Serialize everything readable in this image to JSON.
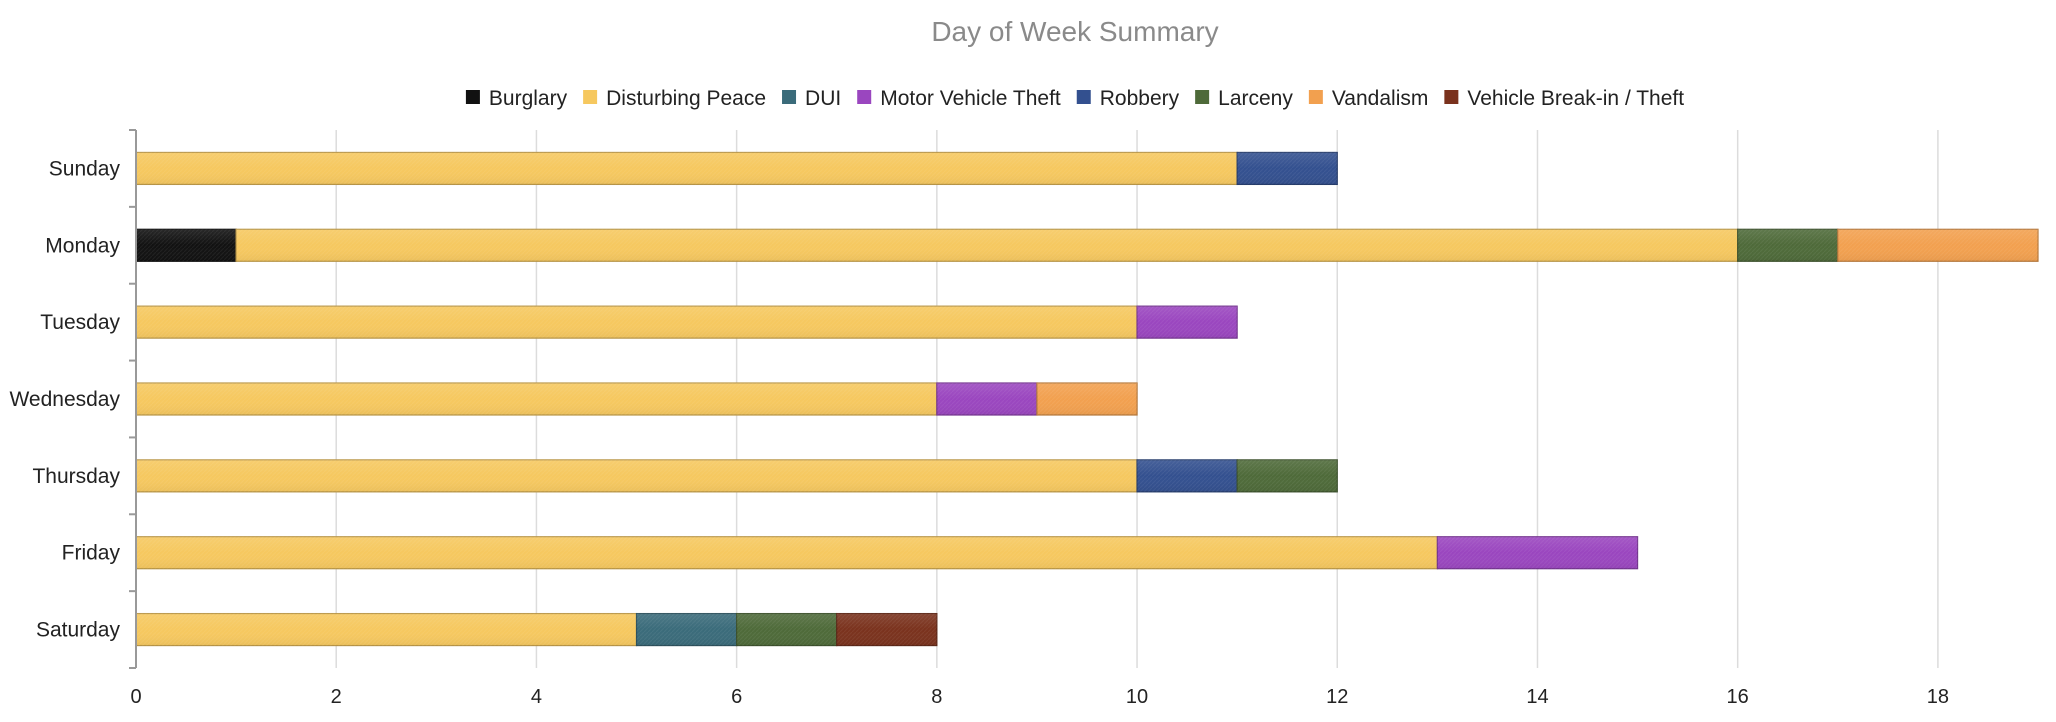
{
  "chart_data": {
    "type": "bar",
    "orientation": "horizontal",
    "stacked": true,
    "title": "Day of Week Summary",
    "xlabel": "",
    "ylabel": "",
    "xlim": [
      0,
      19
    ],
    "x_ticks": [
      0,
      2,
      4,
      6,
      8,
      10,
      12,
      14,
      16,
      18
    ],
    "grid": "vertical",
    "legend_position": "top",
    "categories": [
      "Sunday",
      "Monday",
      "Tuesday",
      "Wednesday",
      "Thursday",
      "Friday",
      "Saturday"
    ],
    "series": [
      {
        "name": "Burglary",
        "color": "#111111",
        "values": [
          0,
          1,
          0,
          0,
          0,
          0,
          0
        ]
      },
      {
        "name": "Disturbing Peace",
        "color": "#f6c85f",
        "values": [
          11,
          15,
          10,
          8,
          10,
          13,
          5
        ]
      },
      {
        "name": "DUI",
        "color": "#3a6b7a",
        "values": [
          0,
          0,
          0,
          0,
          0,
          0,
          1
        ]
      },
      {
        "name": "Motor Vehicle Theft",
        "color": "#9a46bf",
        "values": [
          0,
          0,
          1,
          1,
          0,
          2,
          0
        ]
      },
      {
        "name": "Robbery",
        "color": "#33508f",
        "values": [
          1,
          0,
          0,
          0,
          1,
          0,
          0
        ]
      },
      {
        "name": "Larceny",
        "color": "#4e6a39",
        "values": [
          0,
          1,
          0,
          0,
          1,
          0,
          1
        ]
      },
      {
        "name": "Vandalism",
        "color": "#f2a04f",
        "values": [
          0,
          2,
          0,
          1,
          0,
          0,
          0
        ]
      },
      {
        "name": "Vehicle Break-in / Theft",
        "color": "#7a321d",
        "values": [
          0,
          0,
          0,
          0,
          0,
          0,
          1
        ]
      }
    ]
  }
}
